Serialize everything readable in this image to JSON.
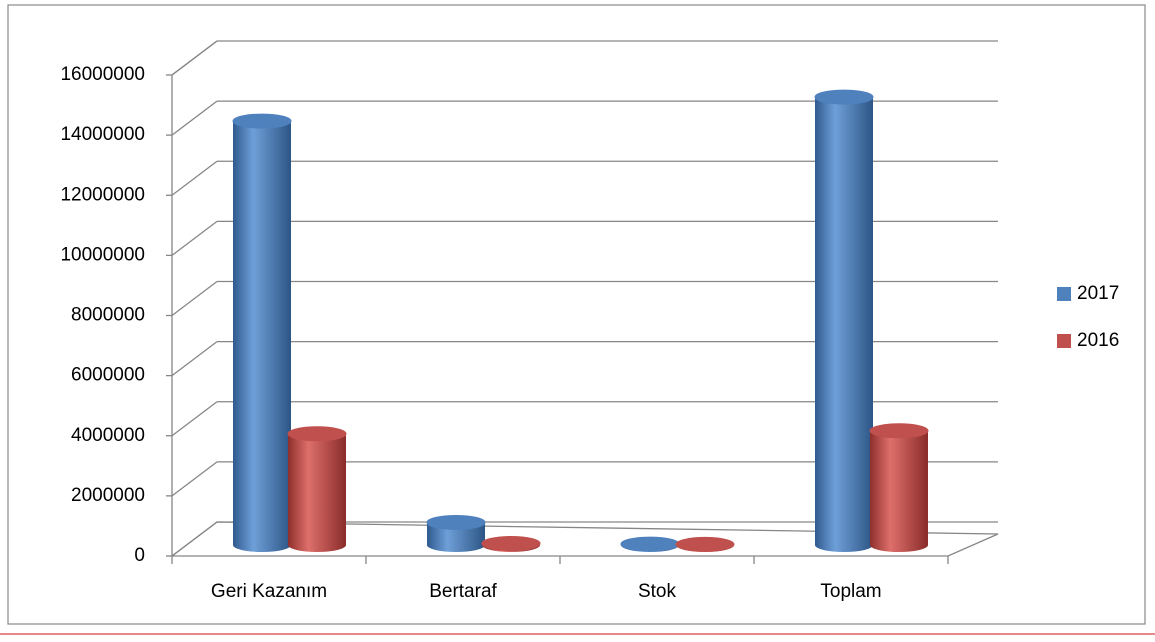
{
  "chart_data": {
    "type": "bar3d",
    "categories": [
      "Geri Kazanım",
      "Bertaraf",
      "Stok",
      "Toplam"
    ],
    "series": [
      {
        "name": "2017",
        "color": "#4f81bd",
        "values": [
          14100000,
          750000,
          30000,
          14900000
        ]
      },
      {
        "name": "2016",
        "color": "#c0504d",
        "values": [
          3700000,
          50000,
          20000,
          3800000
        ]
      }
    ],
    "ylim": [
      0,
      16000000
    ],
    "yticks": [
      0,
      2000000,
      4000000,
      6000000,
      8000000,
      10000000,
      12000000,
      14000000,
      16000000
    ],
    "grid": true,
    "legend": "right"
  }
}
